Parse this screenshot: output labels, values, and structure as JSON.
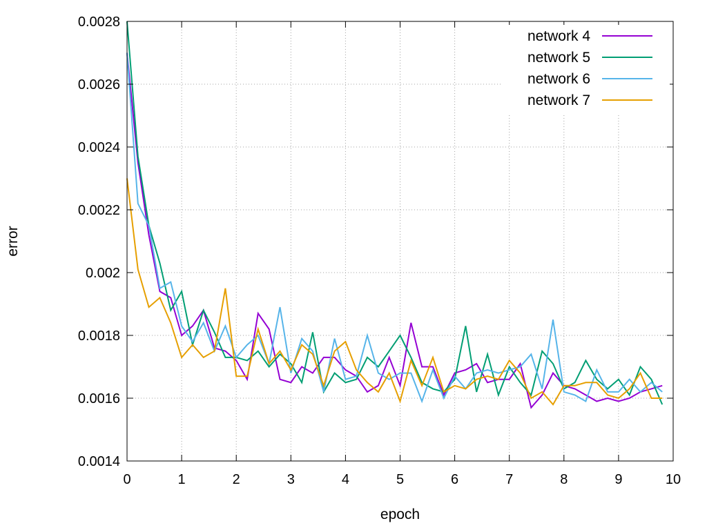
{
  "chart_data": {
    "type": "line",
    "xlabel": "epoch",
    "ylabel": "error",
    "xlim": [
      0,
      10
    ],
    "ylim": [
      0.0014,
      0.0028
    ],
    "xticks": [
      0,
      1,
      2,
      3,
      4,
      5,
      6,
      7,
      8,
      9,
      10
    ],
    "xtick_labels": [
      "0",
      "1",
      "2",
      "3",
      "4",
      "5",
      "6",
      "7",
      "8",
      "9",
      "10"
    ],
    "yticks": [
      0.0014,
      0.0016,
      0.0018,
      0.002,
      0.0022,
      0.0024,
      0.0026,
      0.0028
    ],
    "ytick_labels": [
      "0.0014",
      "0.0016",
      "0.0018",
      "0.002",
      "0.0022",
      "0.0024",
      "0.0026",
      "0.0028"
    ],
    "grid": true,
    "legend_position": "top-right",
    "x": [
      0,
      0.2,
      0.4,
      0.6,
      0.8,
      1.0,
      1.2,
      1.4,
      1.6,
      1.8,
      2.0,
      2.2,
      2.4,
      2.6,
      2.8,
      3.0,
      3.2,
      3.4,
      3.6,
      3.8,
      4.0,
      4.2,
      4.4,
      4.6,
      4.8,
      5.0,
      5.2,
      5.4,
      5.6,
      5.8,
      6.0,
      6.2,
      6.4,
      6.6,
      6.8,
      7.0,
      7.2,
      7.4,
      7.6,
      7.8,
      8.0,
      8.2,
      8.4,
      8.6,
      8.8,
      9.0,
      9.2,
      9.4,
      9.6,
      9.8
    ],
    "series": [
      {
        "name": "network 4",
        "color": "#9400d3",
        "values": [
          0.0027,
          0.00235,
          0.00212,
          0.00194,
          0.00192,
          0.0018,
          0.00183,
          0.00188,
          0.00176,
          0.00175,
          0.00172,
          0.00166,
          0.00187,
          0.00182,
          0.00166,
          0.00165,
          0.0017,
          0.00168,
          0.00173,
          0.00173,
          0.00169,
          0.00167,
          0.00162,
          0.00164,
          0.00173,
          0.00164,
          0.00184,
          0.0017,
          0.0017,
          0.00161,
          0.00168,
          0.00169,
          0.00171,
          0.00165,
          0.00166,
          0.00166,
          0.00171,
          0.00157,
          0.00161,
          0.00168,
          0.00164,
          0.00163,
          0.00161,
          0.00159,
          0.0016,
          0.00159,
          0.0016,
          0.00162,
          0.00163,
          0.00164
        ]
      },
      {
        "name": "network 5",
        "color": "#009e73",
        "values": [
          0.0028,
          0.00237,
          0.00215,
          0.00203,
          0.00188,
          0.00194,
          0.00177,
          0.00188,
          0.00181,
          0.00173,
          0.00173,
          0.00172,
          0.00175,
          0.0017,
          0.00174,
          0.00171,
          0.00165,
          0.00181,
          0.00162,
          0.00168,
          0.00165,
          0.00166,
          0.00173,
          0.0017,
          0.00175,
          0.0018,
          0.00173,
          0.00165,
          0.00163,
          0.00162,
          0.00166,
          0.00183,
          0.00162,
          0.00174,
          0.00161,
          0.0017,
          0.00165,
          0.00161,
          0.00175,
          0.00171,
          0.00163,
          0.00165,
          0.00172,
          0.00166,
          0.00163,
          0.00166,
          0.00161,
          0.0017,
          0.00166,
          0.00158
        ]
      },
      {
        "name": "network 6",
        "color": "#56b4e9",
        "values": [
          0.0027,
          0.00222,
          0.00215,
          0.00195,
          0.00197,
          0.00183,
          0.00178,
          0.00184,
          0.00175,
          0.00183,
          0.00173,
          0.00177,
          0.0018,
          0.00171,
          0.00189,
          0.00168,
          0.00179,
          0.00175,
          0.00162,
          0.00179,
          0.00166,
          0.00167,
          0.0018,
          0.00168,
          0.00166,
          0.00168,
          0.00168,
          0.00159,
          0.00169,
          0.0016,
          0.00167,
          0.00163,
          0.00168,
          0.00169,
          0.00168,
          0.00169,
          0.0017,
          0.00174,
          0.00163,
          0.00185,
          0.00162,
          0.00161,
          0.00159,
          0.00169,
          0.00162,
          0.00162,
          0.00166,
          0.00162,
          0.00165,
          0.00162
        ]
      },
      {
        "name": "network 7",
        "color": "#e69f00",
        "values": [
          0.0023,
          0.00201,
          0.00189,
          0.00192,
          0.00184,
          0.00173,
          0.00177,
          0.00173,
          0.00175,
          0.00195,
          0.00167,
          0.00167,
          0.00182,
          0.00171,
          0.00175,
          0.00169,
          0.00177,
          0.00174,
          0.00164,
          0.00175,
          0.00178,
          0.00169,
          0.00165,
          0.00162,
          0.00168,
          0.00159,
          0.00172,
          0.00164,
          0.00173,
          0.00162,
          0.00164,
          0.00163,
          0.00166,
          0.00167,
          0.00166,
          0.00172,
          0.00168,
          0.0016,
          0.00162,
          0.00158,
          0.00164,
          0.00164,
          0.00165,
          0.00165,
          0.00161,
          0.0016,
          0.00163,
          0.00168,
          0.0016,
          0.0016
        ]
      }
    ]
  }
}
